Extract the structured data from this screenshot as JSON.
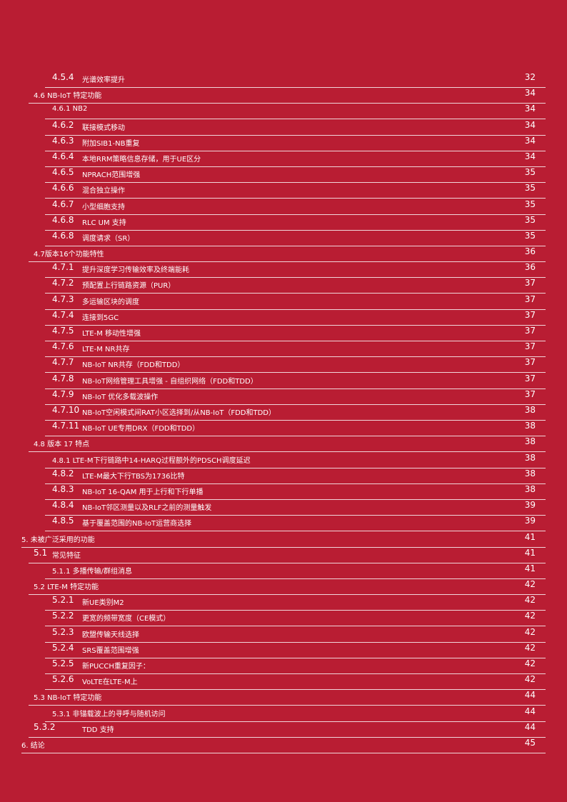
{
  "toc": {
    "entries": [
      {
        "number": "4.5.4",
        "title": "光谱效率提升",
        "page": "32"
      },
      {
        "title": "4.6 NB-IoT 特定功能",
        "page": "34"
      },
      {
        "title": "4.6.1 NB2",
        "page": "34"
      },
      {
        "number": "4.6.2",
        "title": "联接模式移动",
        "page": "34"
      },
      {
        "number": "4.6.3",
        "title": "附加SIB1-NB重复",
        "page": "34"
      },
      {
        "number": "4.6.4",
        "title": "本地RRM策略信息存储，用于UE区分",
        "page": "34"
      },
      {
        "number": "4.6.5",
        "title": "NPRACH范围增强",
        "page": "35"
      },
      {
        "number": "4.6.6",
        "title": "混合独立操作",
        "page": "35"
      },
      {
        "number": "4.6.7",
        "title": "小型细胞支持",
        "page": "35"
      },
      {
        "number": "4.6.8",
        "title": "RLC UM 支持",
        "page": "35"
      },
      {
        "number": "4.6.8",
        "title": "调度请求（SR）",
        "page": "35"
      },
      {
        "title": "4.7版本16个功能特性",
        "page": "36"
      },
      {
        "number": "4.7.1",
        "title": "提升深度学习传输效率及终端能耗",
        "page": "36"
      },
      {
        "number": "4.7.2",
        "title": "预配置上行链路资源（PUR）",
        "page": "37"
      },
      {
        "number": "4.7.3",
        "title": "多运输区块的调度",
        "page": "37"
      },
      {
        "number": "4.7.4",
        "title": "连接到5GC",
        "page": "37"
      },
      {
        "number": "4.7.5",
        "title": "LTE-M 移动性增强",
        "page": "37"
      },
      {
        "number": "4.7.6",
        "title": "LTE-M NR共存",
        "page": "37"
      },
      {
        "number": "4.7.7",
        "title": "NB-IoT NR共存（FDD和TDD）",
        "page": "37"
      },
      {
        "number": "4.7.8",
        "title": "NB-IoT网络管理工具增强 - 自组织网络（FDD和TDD）",
        "page": "37"
      },
      {
        "number": "4.7.9",
        "title": "NB-IoT 优化多载波操作",
        "page": "37"
      },
      {
        "number": "4.7.10",
        "title": "NB-IoT空闲模式间RAT小区选择到/从NB-IoT（FDD和TDD）",
        "page": "38"
      },
      {
        "number": "4.7.11",
        "title": "NB-IoT UE专用DRX（FDD和TDD）",
        "page": "38"
      },
      {
        "title": "4.8 版本 17 特点",
        "page": "38"
      },
      {
        "title": "4.8.1 LTE-M下行链路中14-HARQ过程额外的PDSCH调度延迟",
        "page": "38"
      },
      {
        "number": "4.8.2",
        "title": "LTE-M最大下行TBS为1736比特",
        "page": "38"
      },
      {
        "number": "4.8.3",
        "title": "NB-IoT 16-QAM 用于上行和下行单播",
        "page": "38"
      },
      {
        "number": "4.8.4",
        "title": "NB-IoT邻区测量以及RLF之前的测量触发",
        "page": "39"
      },
      {
        "number": "4.8.5",
        "title": "基于覆盖范围的NB-IoT运营商选择",
        "page": "39"
      },
      {
        "title": "5. 未被广泛采用的功能",
        "page": "41"
      },
      {
        "number": "5.1",
        "title": "常见特征",
        "page": "41"
      },
      {
        "title": "5.1.1 多播传输/群组消息",
        "page": "41"
      },
      {
        "title": "5.2 LTE-M 特定功能",
        "page": "42"
      },
      {
        "number": "5.2.1",
        "title": "新UE类别M2",
        "page": "42"
      },
      {
        "number": "5.2.2",
        "title": "更宽的频带宽度（CE模式）",
        "page": "42"
      },
      {
        "number": "5.2.3",
        "title": "欧盟传输天线选择",
        "page": "42"
      },
      {
        "number": "5.2.4",
        "title": "SRS覆盖范围增强",
        "page": "42"
      },
      {
        "number": "5.2.5",
        "title": "新PUCCH重复因子：",
        "page": "42"
      },
      {
        "number": "5.2.6",
        "title": "VoLTE在LTE-M上",
        "page": "42"
      },
      {
        "title": "5.3 NB-IoT 特定功能",
        "page": "44"
      },
      {
        "title": "5.3.1 非锚载波上的寻呼与随机访问",
        "page": "44"
      },
      {
        "number": "5.3.2",
        "title": "TDD 支持",
        "page": "44"
      },
      {
        "title": "6. 结论",
        "page": "45"
      }
    ]
  }
}
